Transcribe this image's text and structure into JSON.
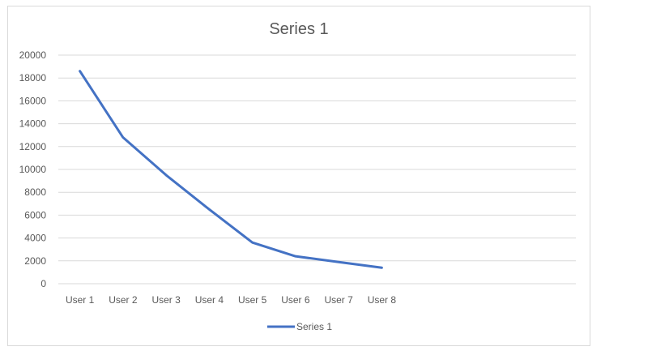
{
  "chart_data": {
    "type": "line",
    "title": "Series 1",
    "categories": [
      "User 1",
      "User 2",
      "User 3",
      "User 4",
      "User 5",
      "User 6",
      "User 7",
      "User 8"
    ],
    "series": [
      {
        "name": "Series 1",
        "values": [
          18600,
          12800,
          9500,
          6500,
          3600,
          2400,
          1900,
          1400
        ],
        "color": "#4472c4"
      }
    ],
    "y_ticks": [
      "0",
      "2000",
      "4000",
      "6000",
      "8000",
      "10000",
      "12000",
      "14000",
      "16000",
      "18000",
      "20000"
    ],
    "ylim": [
      0,
      20000
    ],
    "category_slots": 12,
    "grid": true,
    "legend": "bottom"
  }
}
